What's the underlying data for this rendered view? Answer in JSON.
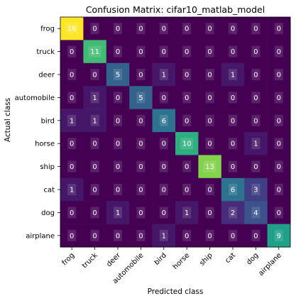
{
  "chart_data": {
    "type": "heatmap",
    "title": "Confusion Matrix: cifar10_matlab_model",
    "xlabel": "Predicted class",
    "ylabel": "Actual class",
    "rows": [
      "frog",
      "truck",
      "deer",
      "automobile",
      "bird",
      "horse",
      "ship",
      "cat",
      "dog",
      "airplane"
    ],
    "columns": [
      "frog",
      "truck",
      "deer",
      "automobile",
      "bird",
      "horse",
      "ship",
      "cat",
      "dog",
      "airplane"
    ],
    "values": [
      [
        16,
        0,
        0,
        0,
        0,
        0,
        0,
        0,
        0,
        0
      ],
      [
        0,
        11,
        0,
        0,
        0,
        0,
        0,
        0,
        0,
        0
      ],
      [
        0,
        0,
        5,
        0,
        1,
        0,
        0,
        1,
        0,
        0
      ],
      [
        0,
        1,
        0,
        5,
        0,
        0,
        0,
        0,
        0,
        0
      ],
      [
        1,
        1,
        0,
        0,
        6,
        0,
        0,
        0,
        0,
        0
      ],
      [
        0,
        0,
        0,
        0,
        0,
        10,
        0,
        0,
        1,
        0
      ],
      [
        0,
        0,
        0,
        0,
        0,
        0,
        13,
        0,
        0,
        0
      ],
      [
        1,
        0,
        0,
        0,
        0,
        0,
        0,
        6,
        3,
        0
      ],
      [
        0,
        0,
        1,
        0,
        0,
        1,
        0,
        2,
        4,
        0
      ],
      [
        0,
        0,
        0,
        0,
        1,
        0,
        0,
        0,
        0,
        9
      ]
    ],
    "colormap": "viridis",
    "vmin": 0,
    "vmax": 16
  }
}
